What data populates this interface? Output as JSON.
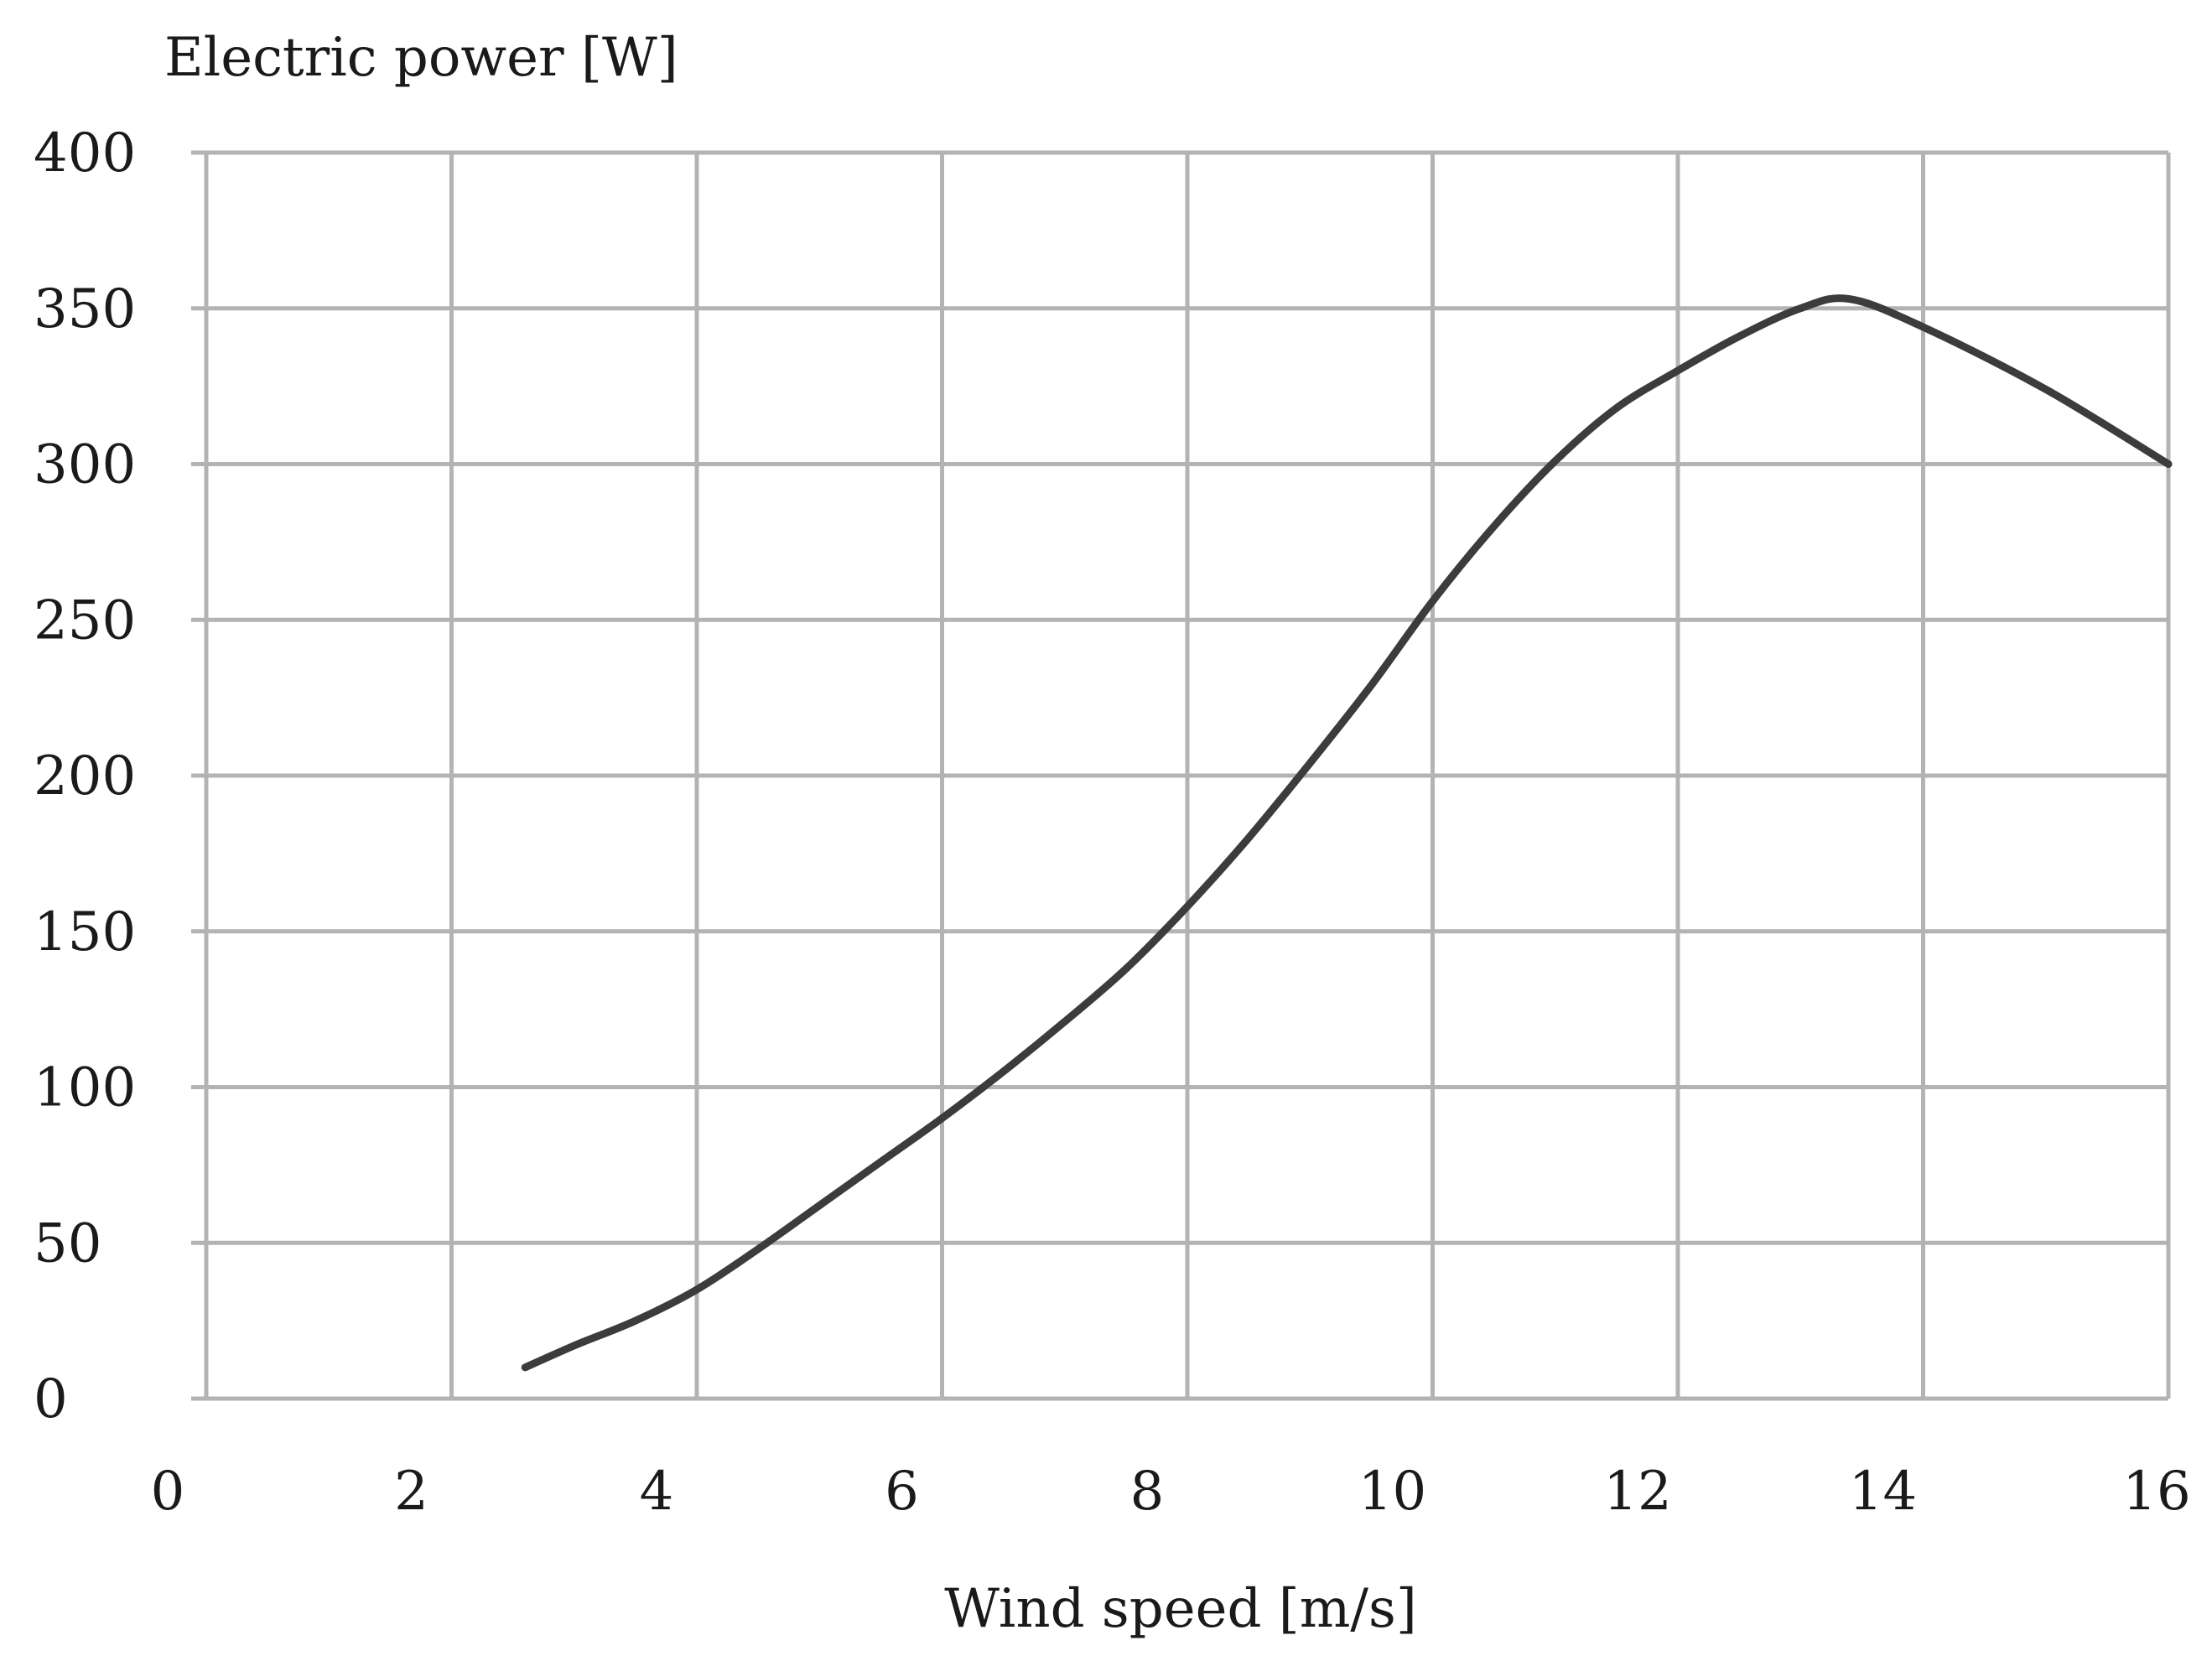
{
  "chart_data": {
    "type": "line",
    "title": "",
    "ylabel": "Electric power [W]",
    "xlabel": "Wind speed [m/s]",
    "xlim": [
      0,
      16
    ],
    "ylim": [
      0,
      400
    ],
    "xticks": [
      0,
      2,
      4,
      6,
      8,
      10,
      12,
      14,
      16
    ],
    "yticks": [
      0,
      50,
      100,
      150,
      200,
      250,
      300,
      350,
      400
    ],
    "xtick_labels": [
      "0",
      "2",
      "4",
      "6",
      "8",
      "10",
      "12",
      "14",
      "16"
    ],
    "ytick_labels": [
      "0",
      "50",
      "100",
      "150",
      "200",
      "250",
      "300",
      "350",
      "400"
    ],
    "grid": true,
    "colors": {
      "grid": "#b3b3b3",
      "line": "#3c3c3c",
      "text": "#1a1a1a"
    },
    "series": [
      {
        "x": [
          2.6,
          3.0,
          3.5,
          4.0,
          4.5,
          5.0,
          5.5,
          6.0,
          6.5,
          7.0,
          7.5,
          8.0,
          8.5,
          9.0,
          9.5,
          10.0,
          10.5,
          11.0,
          11.5,
          12.0,
          12.5,
          13.0,
          13.4,
          14.0,
          15.0,
          16.0
        ],
        "y": [
          10,
          17,
          25,
          35,
          48,
          62,
          76,
          90,
          105,
          121,
          138,
          158,
          180,
          204,
          229,
          256,
          280,
          301,
          318,
          330,
          341,
          350,
          353,
          344,
          324,
          300
        ]
      }
    ]
  }
}
